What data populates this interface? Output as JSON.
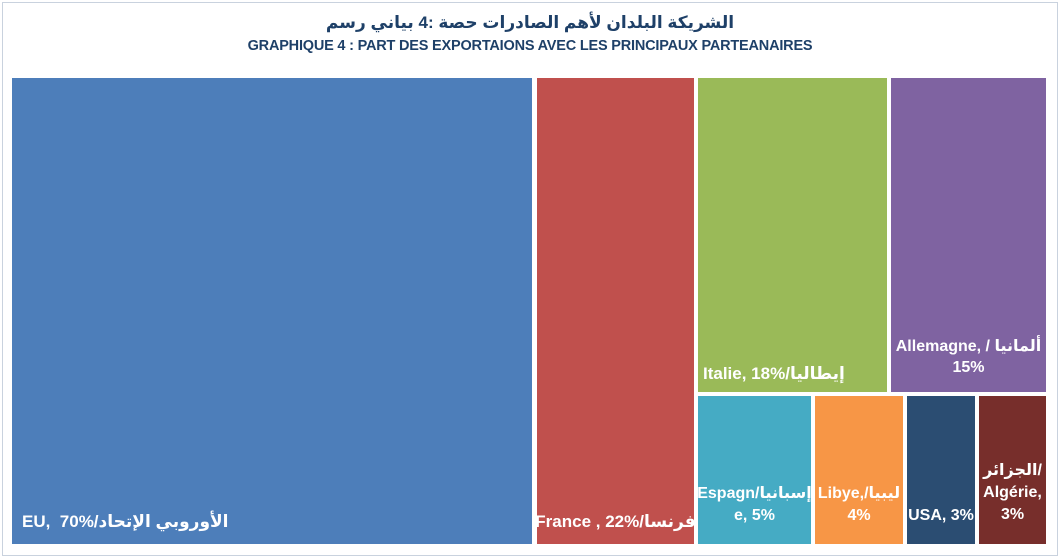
{
  "title": {
    "arabic": "رسم‎ بياني‎ 4: حصة‎ الصادرات‎ لأهم‎ البلدان‎ الشريكة",
    "french": "GRAPHIQUE 4 : PART DES EXPORTAIONS AVEC LES PRINCIPAUX PARTEANAIRES"
  },
  "chart_data": {
    "type": "treemap",
    "title": "GRAPHIQUE 4 : PART DES EXPORTAIONS AVEC LES PRINCIPAUX PARTEANAIRES",
    "title_arabic": "رسم بياني 4: حصة الصادرات لأهم البلدان الشريكة",
    "unit": "% of exports",
    "legend": "none",
    "label_text_color": "#ffffff",
    "partners": [
      {
        "name": "EU",
        "name_arabic": "الإتحاد الأوروبي",
        "value": 70,
        "color": "#4d7eba",
        "lines": [
          "EU,  70%/الإتحاد‎ الأوروبي"
        ]
      },
      {
        "name": "France",
        "name_arabic": "فرنسا",
        "value": 22,
        "color": "#c0504d",
        "lines": [
          "France , 22%/فرنسا"
        ]
      },
      {
        "name": "Italie",
        "name_arabic": "إيطاليا",
        "value": 18,
        "color": "#9aba58",
        "lines": [
          "Italie, 18%/إيطاليا"
        ]
      },
      {
        "name": "Allemagne",
        "name_arabic": "ألمانيا",
        "value": 15,
        "color": "#7f63a1",
        "lines": [
          "Allemagne, / ألمانيا",
          "15%"
        ]
      },
      {
        "name": "Espagne",
        "name_arabic": "إسبانيا",
        "value": 5,
        "color": "#45abc4",
        "lines": [
          "Espagn/إسبانيا",
          "e, 5%"
        ]
      },
      {
        "name": "Libye",
        "name_arabic": "ليبيا",
        "value": 4,
        "color": "#f79646",
        "lines": [
          "Libye,/ليبيا",
          "4%"
        ]
      },
      {
        "name": "USA",
        "name_arabic": "",
        "value": 3,
        "color": "#2b4d72",
        "lines": [
          "USA, 3%"
        ]
      },
      {
        "name": "Algérie",
        "name_arabic": "الجزائر",
        "value": 3,
        "color": "#772e2b",
        "lines": [
          "الجزائر/",
          "Algérie,",
          "3%"
        ]
      }
    ]
  }
}
